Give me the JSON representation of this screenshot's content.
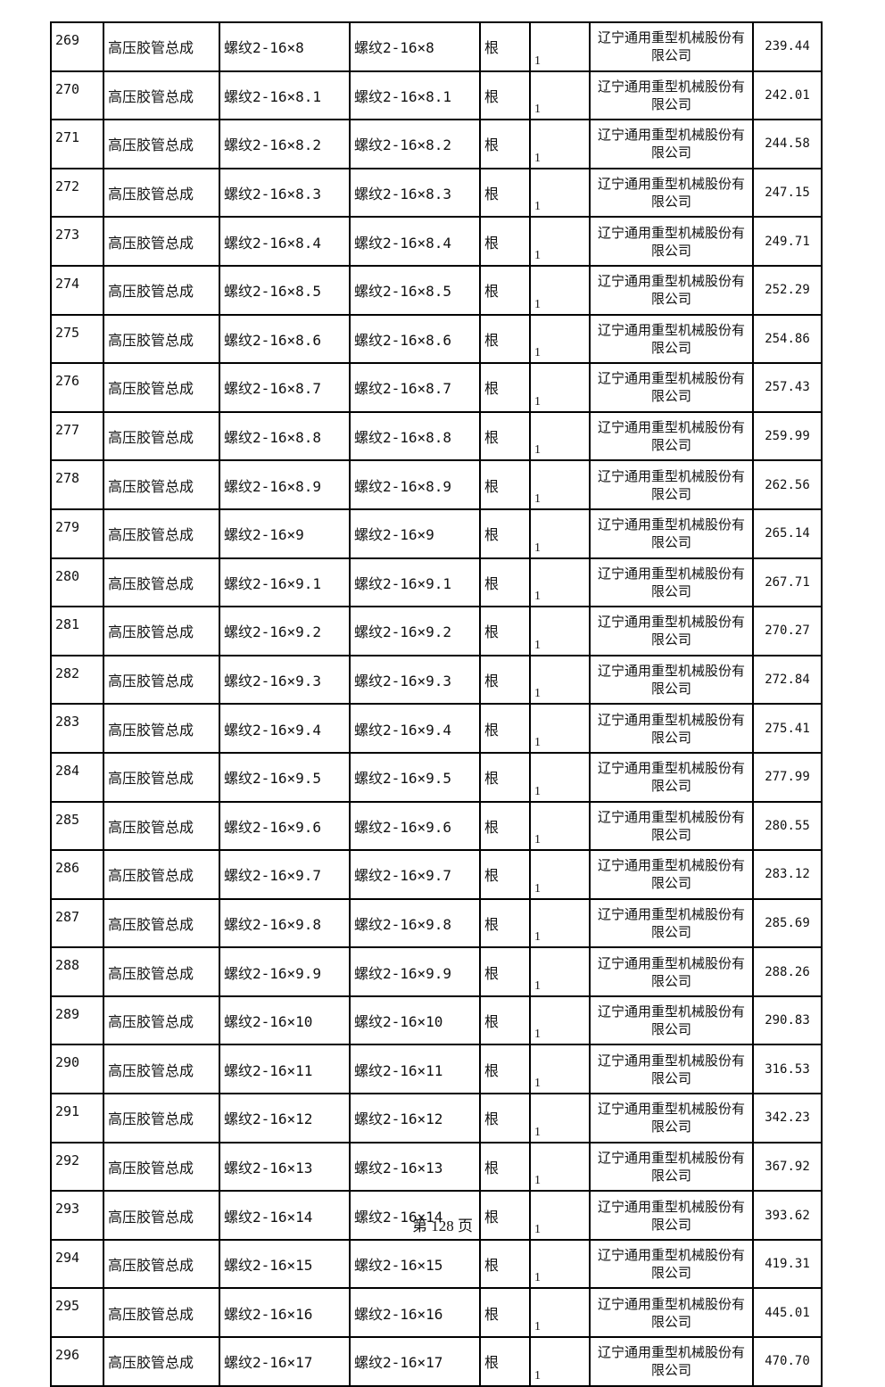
{
  "table": {
    "rows": [
      {
        "no": "269",
        "name": "高压胶管总成",
        "spec1": "螺纹2-16×8",
        "spec2": "螺纹2-16×8",
        "unit": "根",
        "qty": "1",
        "mfr": "辽宁通用重型机械股份有限公司",
        "price": "239.44"
      },
      {
        "no": "270",
        "name": "高压胶管总成",
        "spec1": "螺纹2-16×8.1",
        "spec2": "螺纹2-16×8.1",
        "unit": "根",
        "qty": "1",
        "mfr": "辽宁通用重型机械股份有限公司",
        "price": "242.01"
      },
      {
        "no": "271",
        "name": "高压胶管总成",
        "spec1": "螺纹2-16×8.2",
        "spec2": "螺纹2-16×8.2",
        "unit": "根",
        "qty": "1",
        "mfr": "辽宁通用重型机械股份有限公司",
        "price": "244.58"
      },
      {
        "no": "272",
        "name": "高压胶管总成",
        "spec1": "螺纹2-16×8.3",
        "spec2": "螺纹2-16×8.3",
        "unit": "根",
        "qty": "1",
        "mfr": "辽宁通用重型机械股份有限公司",
        "price": "247.15"
      },
      {
        "no": "273",
        "name": "高压胶管总成",
        "spec1": "螺纹2-16×8.4",
        "spec2": "螺纹2-16×8.4",
        "unit": "根",
        "qty": "1",
        "mfr": "辽宁通用重型机械股份有限公司",
        "price": "249.71"
      },
      {
        "no": "274",
        "name": "高压胶管总成",
        "spec1": "螺纹2-16×8.5",
        "spec2": "螺纹2-16×8.5",
        "unit": "根",
        "qty": "1",
        "mfr": "辽宁通用重型机械股份有限公司",
        "price": "252.29"
      },
      {
        "no": "275",
        "name": "高压胶管总成",
        "spec1": "螺纹2-16×8.6",
        "spec2": "螺纹2-16×8.6",
        "unit": "根",
        "qty": "1",
        "mfr": "辽宁通用重型机械股份有限公司",
        "price": "254.86"
      },
      {
        "no": "276",
        "name": "高压胶管总成",
        "spec1": "螺纹2-16×8.7",
        "spec2": "螺纹2-16×8.7",
        "unit": "根",
        "qty": "1",
        "mfr": "辽宁通用重型机械股份有限公司",
        "price": "257.43"
      },
      {
        "no": "277",
        "name": "高压胶管总成",
        "spec1": "螺纹2-16×8.8",
        "spec2": "螺纹2-16×8.8",
        "unit": "根",
        "qty": "1",
        "mfr": "辽宁通用重型机械股份有限公司",
        "price": "259.99"
      },
      {
        "no": "278",
        "name": "高压胶管总成",
        "spec1": "螺纹2-16×8.9",
        "spec2": "螺纹2-16×8.9",
        "unit": "根",
        "qty": "1",
        "mfr": "辽宁通用重型机械股份有限公司",
        "price": "262.56"
      },
      {
        "no": "279",
        "name": "高压胶管总成",
        "spec1": "螺纹2-16×9",
        "spec2": "螺纹2-16×9",
        "unit": "根",
        "qty": "1",
        "mfr": "辽宁通用重型机械股份有限公司",
        "price": "265.14"
      },
      {
        "no": "280",
        "name": "高压胶管总成",
        "spec1": "螺纹2-16×9.1",
        "spec2": "螺纹2-16×9.1",
        "unit": "根",
        "qty": "1",
        "mfr": "辽宁通用重型机械股份有限公司",
        "price": "267.71"
      },
      {
        "no": "281",
        "name": "高压胶管总成",
        "spec1": "螺纹2-16×9.2",
        "spec2": "螺纹2-16×9.2",
        "unit": "根",
        "qty": "1",
        "mfr": "辽宁通用重型机械股份有限公司",
        "price": "270.27"
      },
      {
        "no": "282",
        "name": "高压胶管总成",
        "spec1": "螺纹2-16×9.3",
        "spec2": "螺纹2-16×9.3",
        "unit": "根",
        "qty": "1",
        "mfr": "辽宁通用重型机械股份有限公司",
        "price": "272.84"
      },
      {
        "no": "283",
        "name": "高压胶管总成",
        "spec1": "螺纹2-16×9.4",
        "spec2": "螺纹2-16×9.4",
        "unit": "根",
        "qty": "1",
        "mfr": "辽宁通用重型机械股份有限公司",
        "price": "275.41"
      },
      {
        "no": "284",
        "name": "高压胶管总成",
        "spec1": "螺纹2-16×9.5",
        "spec2": "螺纹2-16×9.5",
        "unit": "根",
        "qty": "1",
        "mfr": "辽宁通用重型机械股份有限公司",
        "price": "277.99"
      },
      {
        "no": "285",
        "name": "高压胶管总成",
        "spec1": "螺纹2-16×9.6",
        "spec2": "螺纹2-16×9.6",
        "unit": "根",
        "qty": "1",
        "mfr": "辽宁通用重型机械股份有限公司",
        "price": "280.55"
      },
      {
        "no": "286",
        "name": "高压胶管总成",
        "spec1": "螺纹2-16×9.7",
        "spec2": "螺纹2-16×9.7",
        "unit": "根",
        "qty": "1",
        "mfr": "辽宁通用重型机械股份有限公司",
        "price": "283.12"
      },
      {
        "no": "287",
        "name": "高压胶管总成",
        "spec1": "螺纹2-16×9.8",
        "spec2": "螺纹2-16×9.8",
        "unit": "根",
        "qty": "1",
        "mfr": "辽宁通用重型机械股份有限公司",
        "price": "285.69"
      },
      {
        "no": "288",
        "name": "高压胶管总成",
        "spec1": "螺纹2-16×9.9",
        "spec2": "螺纹2-16×9.9",
        "unit": "根",
        "qty": "1",
        "mfr": "辽宁通用重型机械股份有限公司",
        "price": "288.26"
      },
      {
        "no": "289",
        "name": "高压胶管总成",
        "spec1": "螺纹2-16×10",
        "spec2": "螺纹2-16×10",
        "unit": "根",
        "qty": "1",
        "mfr": "辽宁通用重型机械股份有限公司",
        "price": "290.83"
      },
      {
        "no": "290",
        "name": "高压胶管总成",
        "spec1": "螺纹2-16×11",
        "spec2": "螺纹2-16×11",
        "unit": "根",
        "qty": "1",
        "mfr": "辽宁通用重型机械股份有限公司",
        "price": "316.53"
      },
      {
        "no": "291",
        "name": "高压胶管总成",
        "spec1": "螺纹2-16×12",
        "spec2": "螺纹2-16×12",
        "unit": "根",
        "qty": "1",
        "mfr": "辽宁通用重型机械股份有限公司",
        "price": "342.23"
      },
      {
        "no": "292",
        "name": "高压胶管总成",
        "spec1": "螺纹2-16×13",
        "spec2": "螺纹2-16×13",
        "unit": "根",
        "qty": "1",
        "mfr": "辽宁通用重型机械股份有限公司",
        "price": "367.92"
      },
      {
        "no": "293",
        "name": "高压胶管总成",
        "spec1": "螺纹2-16×14",
        "spec2": "螺纹2-16×14",
        "unit": "根",
        "qty": "1",
        "mfr": "辽宁通用重型机械股份有限公司",
        "price": "393.62"
      },
      {
        "no": "294",
        "name": "高压胶管总成",
        "spec1": "螺纹2-16×15",
        "spec2": "螺纹2-16×15",
        "unit": "根",
        "qty": "1",
        "mfr": "辽宁通用重型机械股份有限公司",
        "price": "419.31"
      },
      {
        "no": "295",
        "name": "高压胶管总成",
        "spec1": "螺纹2-16×16",
        "spec2": "螺纹2-16×16",
        "unit": "根",
        "qty": "1",
        "mfr": "辽宁通用重型机械股份有限公司",
        "price": "445.01"
      },
      {
        "no": "296",
        "name": "高压胶管总成",
        "spec1": "螺纹2-16×17",
        "spec2": "螺纹2-16×17",
        "unit": "根",
        "qty": "1",
        "mfr": "辽宁通用重型机械股份有限公司",
        "price": "470.70"
      }
    ]
  },
  "footer": {
    "page_label": "第 128 页"
  }
}
